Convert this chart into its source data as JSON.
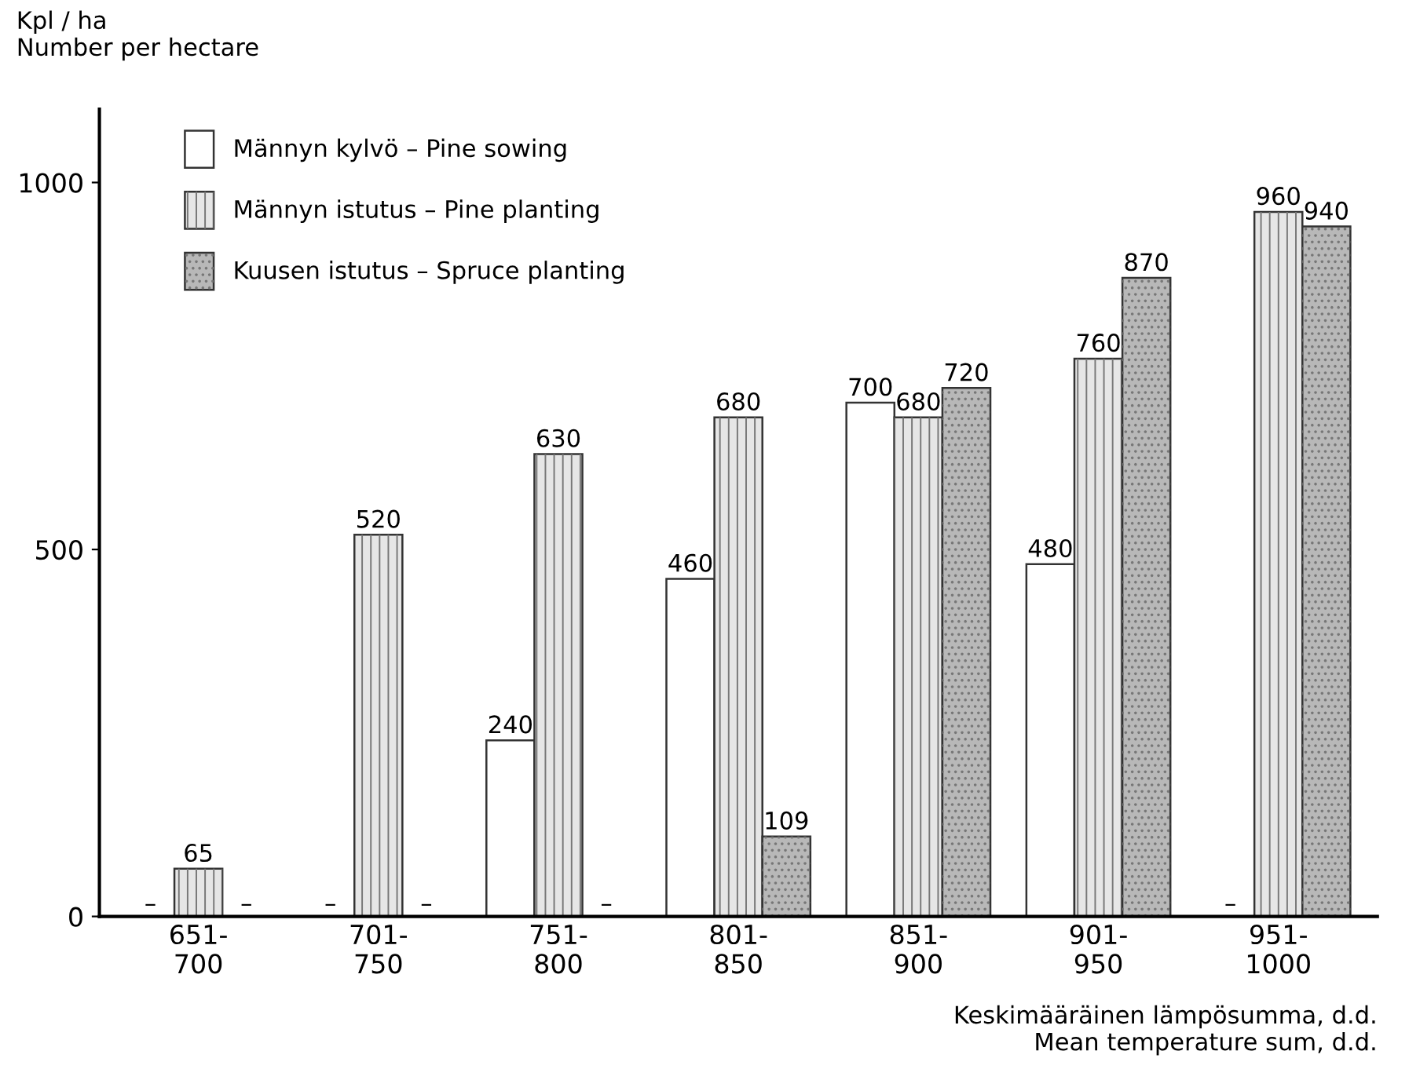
{
  "chart_data": {
    "type": "bar",
    "ylabel": "Kpl / ha\nNumber per hectare",
    "xlabel": "Keskimääräinen lämpösumma, d.d.\nMean temperature sum, d.d.",
    "categories": [
      "651-\n700",
      "701-\n750",
      "751-\n800",
      "801-\n850",
      "851-\n900",
      "901-\n950",
      "951-\n1000"
    ],
    "series": [
      {
        "name": "Männyn kylvö – Pine sowing",
        "color": "#ffffff",
        "values": [
          null,
          null,
          240,
          460,
          700,
          480,
          null
        ],
        "value_labels": [
          "–",
          "–",
          "240",
          "460",
          "700",
          "480",
          "–"
        ]
      },
      {
        "name": "Männyn istutus – Pine planting",
        "color": "#e6e6e6",
        "values": [
          65,
          520,
          630,
          680,
          680,
          760,
          960
        ],
        "value_labels": [
          "65",
          "520",
          "630",
          "680",
          "680",
          "760",
          "960"
        ]
      },
      {
        "name": "Kuusen istutus – Spruce planting",
        "color": "#b8b8b8",
        "values": [
          null,
          null,
          null,
          109,
          720,
          870,
          940
        ],
        "value_labels": [
          "–",
          "–",
          "–",
          "109",
          "720",
          "870",
          "940"
        ]
      }
    ],
    "ylim": [
      0,
      1100
    ],
    "yticks": [
      0,
      500,
      1000
    ],
    "grid": false,
    "legend": "top left"
  }
}
